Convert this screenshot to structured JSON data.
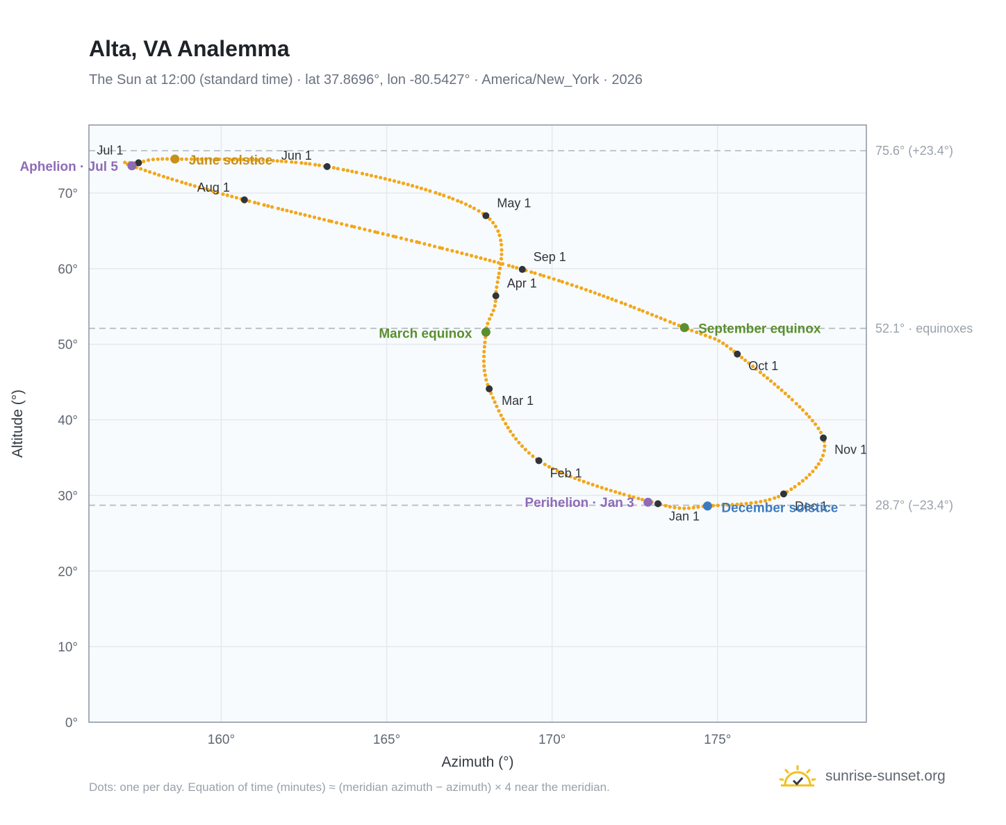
{
  "header": {
    "title": "Alta, VA Analemma",
    "subtitle": "The Sun at 12:00 (standard time) · lat 37.8696°, lon -80.5427° · America/New_York · 2026"
  },
  "footer": {
    "note": "Dots: one per day. Equation of time (minutes) ≈ (meridian azimuth − azimuth) × 4 near the meridian.",
    "brand": "sunrise-sunset.org",
    "brand_icon": "sun-check-icon"
  },
  "chart_data": {
    "type": "scatter",
    "xlabel": "Azimuth (°)",
    "ylabel": "Altitude (°)",
    "xlim": [
      156,
      179.5
    ],
    "ylim": [
      0,
      79
    ],
    "x_ticks": [
      160,
      165,
      170,
      175
    ],
    "x_tick_labels": [
      "160°",
      "165°",
      "170°",
      "175°"
    ],
    "y_ticks": [
      0,
      10,
      20,
      30,
      40,
      50,
      60,
      70
    ],
    "y_tick_labels": [
      "0°",
      "10°",
      "20°",
      "30°",
      "40°",
      "50°",
      "60°",
      "70°"
    ],
    "grid": true,
    "colors": {
      "path": "#f2a71b",
      "month_marker": "#2f343b",
      "equinox": "#5a8f2e",
      "june_solstice": "#c8901a",
      "december_solstice": "#3d7bbf",
      "apsis": "#8e6bb8",
      "reference_line": "#b8bec6",
      "plot_background": "#f8fbfd",
      "plot_border": "#8a94a3"
    },
    "reference_lines": [
      {
        "y": 75.6,
        "label": "75.6° (+23.4°)"
      },
      {
        "y": 52.1,
        "label": "52.1° · equinoxes"
      },
      {
        "y": 28.7,
        "label": "28.7° (−23.4°)"
      }
    ],
    "month_markers": [
      {
        "label": "Jan 1",
        "az": 173.2,
        "alt": 28.9
      },
      {
        "label": "Feb 1",
        "az": 169.6,
        "alt": 34.6
      },
      {
        "label": "Mar 1",
        "az": 168.1,
        "alt": 44.1
      },
      {
        "label": "Apr 1",
        "az": 168.3,
        "alt": 56.4
      },
      {
        "label": "May 1",
        "az": 168.0,
        "alt": 67.0
      },
      {
        "label": "Jun 1",
        "az": 163.2,
        "alt": 73.5
      },
      {
        "label": "Jul 1",
        "az": 157.5,
        "alt": 74.0
      },
      {
        "label": "Aug 1",
        "az": 160.7,
        "alt": 69.1
      },
      {
        "label": "Sep 1",
        "az": 169.1,
        "alt": 59.9
      },
      {
        "label": "Oct 1",
        "az": 175.6,
        "alt": 48.7
      },
      {
        "label": "Nov 1",
        "az": 178.2,
        "alt": 37.6
      },
      {
        "label": "Dec 1",
        "az": 177.0,
        "alt": 30.2
      }
    ],
    "events": [
      {
        "label": "Aphelion · Jul 5",
        "az": 157.3,
        "alt": 73.6,
        "kind": "apsis"
      },
      {
        "label": "June solstice",
        "az": 158.6,
        "alt": 74.5,
        "kind": "june_solstice"
      },
      {
        "label": "March equinox",
        "az": 168.0,
        "alt": 51.6,
        "kind": "equinox"
      },
      {
        "label": "September equinox",
        "az": 174.0,
        "alt": 52.2,
        "kind": "equinox"
      },
      {
        "label": "Perihelion · Jan 3",
        "az": 172.9,
        "alt": 29.1,
        "kind": "apsis"
      },
      {
        "label": "December solstice",
        "az": 174.7,
        "alt": 28.6,
        "kind": "december_solstice"
      }
    ],
    "daily_path_key_points": [
      {
        "az": 174.7,
        "alt": 28.6
      },
      {
        "az": 173.2,
        "alt": 28.9
      },
      {
        "az": 169.6,
        "alt": 34.6
      },
      {
        "az": 168.1,
        "alt": 44.1
      },
      {
        "az": 168.0,
        "alt": 51.6
      },
      {
        "az": 168.3,
        "alt": 56.4
      },
      {
        "az": 168.0,
        "alt": 67.0
      },
      {
        "az": 163.2,
        "alt": 73.5
      },
      {
        "az": 158.6,
        "alt": 74.5
      },
      {
        "az": 157.5,
        "alt": 74.0
      },
      {
        "az": 157.3,
        "alt": 73.6
      },
      {
        "az": 160.7,
        "alt": 69.1
      },
      {
        "az": 169.1,
        "alt": 59.9
      },
      {
        "az": 174.0,
        "alt": 52.2
      },
      {
        "az": 175.6,
        "alt": 48.7
      },
      {
        "az": 178.2,
        "alt": 37.6
      },
      {
        "az": 177.0,
        "alt": 30.2
      },
      {
        "az": 174.7,
        "alt": 28.6
      }
    ]
  }
}
